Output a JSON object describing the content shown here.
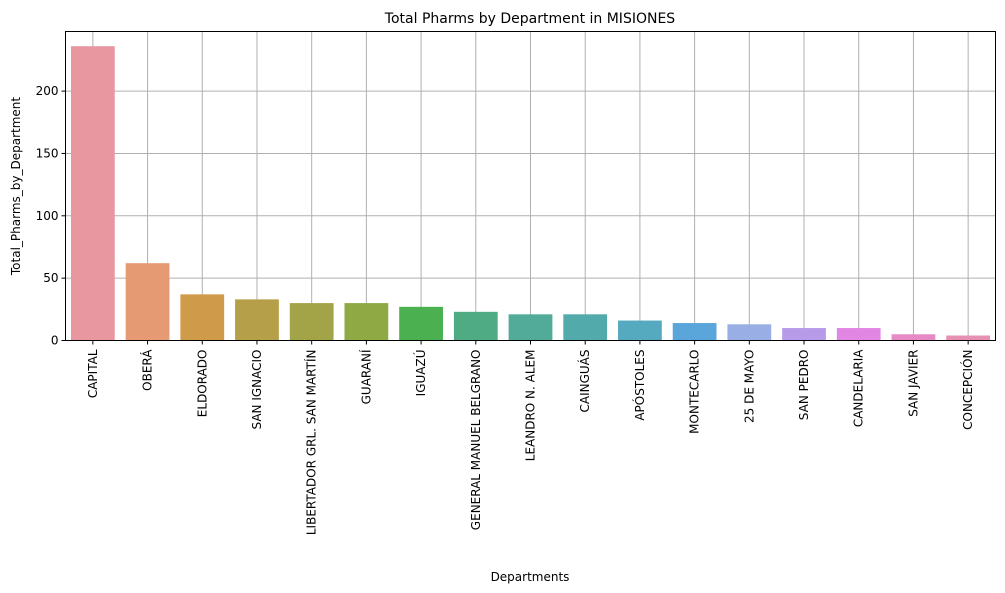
{
  "chart_data": {
    "type": "bar",
    "title": "Total Pharms by Department in MISIONES",
    "xlabel": "Departments",
    "ylabel": "Total_Pharms_by_Department",
    "categories": [
      "CAPITAL",
      "OBERÁ",
      "ELDORADO",
      "SAN IGNACIO",
      "LIBERTADOR GRL. SAN MARTÍN",
      "GUARANÍ",
      "IGUAZÚ",
      "GENERAL MANUEL BELGRANO",
      "LEANDRO N. ALEM",
      "CAINGUÁS",
      "APÓSTOLES",
      "MONTECARLO",
      "25 DE MAYO",
      "SAN PEDRO",
      "CANDELARIA",
      "SAN JAVIER",
      "CONCEPCIÓN"
    ],
    "values": [
      236,
      62,
      37,
      33,
      30,
      30,
      27,
      23,
      21,
      21,
      16,
      14,
      13,
      10,
      10,
      5,
      4
    ],
    "colors": [
      "#e8969f",
      "#e59a73",
      "#cf9b4a",
      "#b59f48",
      "#a3a447",
      "#8fa944",
      "#4bb04f",
      "#4fab83",
      "#52ab99",
      "#52aaab",
      "#56aac0",
      "#5aa5d9",
      "#9aaee6",
      "#b89be8",
      "#e187e3",
      "#e58ac4",
      "#e691b3"
    ],
    "yticks": [
      0,
      50,
      100,
      150,
      200
    ],
    "ylim": [
      0,
      247.8
    ],
    "grid": true,
    "legend": "none"
  }
}
